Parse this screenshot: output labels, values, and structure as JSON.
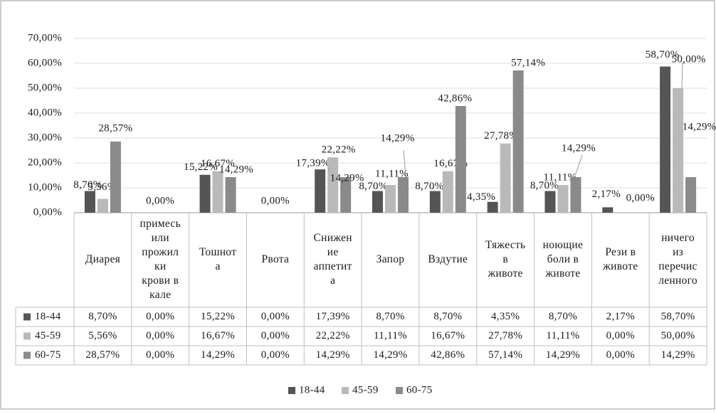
{
  "chart_data": {
    "type": "bar",
    "title": "",
    "xlabel": "",
    "ylabel": "",
    "ylim": [
      0,
      70
    ],
    "y_ticks": [
      "0,00%",
      "10,00%",
      "20,00%",
      "30,00%",
      "40,00%",
      "50,00%",
      "60,00%",
      "70,00%"
    ],
    "grid": true,
    "legend_position": "bottom",
    "categories": [
      [
        "Диарея"
      ],
      [
        "примесь",
        "или",
        "прожил",
        "ки",
        "крови в",
        "кале"
      ],
      [
        "Тошнот",
        "а"
      ],
      [
        "Рвота"
      ],
      [
        "Снижен",
        "ие",
        "аппетит",
        "а"
      ],
      [
        "Запор"
      ],
      [
        "Вздутие"
      ],
      [
        "Тяжесть",
        "в",
        "животе"
      ],
      [
        "ноющие",
        "боли в",
        "животе"
      ],
      [
        "Рези в",
        "животе"
      ],
      [
        "ничего",
        "из",
        "перечис",
        "ленного"
      ]
    ],
    "series": [
      {
        "name": "18-44",
        "color": "#555555",
        "values": [
          8.7,
          0.0,
          15.22,
          0.0,
          17.39,
          8.7,
          8.7,
          4.35,
          8.7,
          2.17,
          58.7
        ],
        "labels": [
          "8,70%",
          "0,00%",
          "15,22%",
          "0,00%",
          "17,39%",
          "8,70%",
          "8,70%",
          "4,35%",
          "8,70%",
          "2,17%",
          "58,70%"
        ]
      },
      {
        "name": "45-59",
        "color": "#b9b9b9",
        "values": [
          5.56,
          0.0,
          16.67,
          0.0,
          22.22,
          11.11,
          16.67,
          27.78,
          11.11,
          0.0,
          50.0
        ],
        "labels": [
          "5,56%",
          "0,00%",
          "16,67%",
          "0,00%",
          "22,22%",
          "11,11%",
          "16,67%",
          "27,78%",
          "11,11%",
          "0,00%",
          "50,00%"
        ]
      },
      {
        "name": "60-75",
        "color": "#8a8a8a",
        "values": [
          28.57,
          0.0,
          14.29,
          0.0,
          14.29,
          14.29,
          42.86,
          57.14,
          14.29,
          0.0,
          14.29
        ],
        "labels": [
          "28,57%",
          "0,00%",
          "14,29%",
          "0,00%",
          "14,29%",
          "14,29%",
          "42,86%",
          "57,14%",
          "14,29%",
          "0,00%",
          "14,29%"
        ]
      }
    ]
  }
}
